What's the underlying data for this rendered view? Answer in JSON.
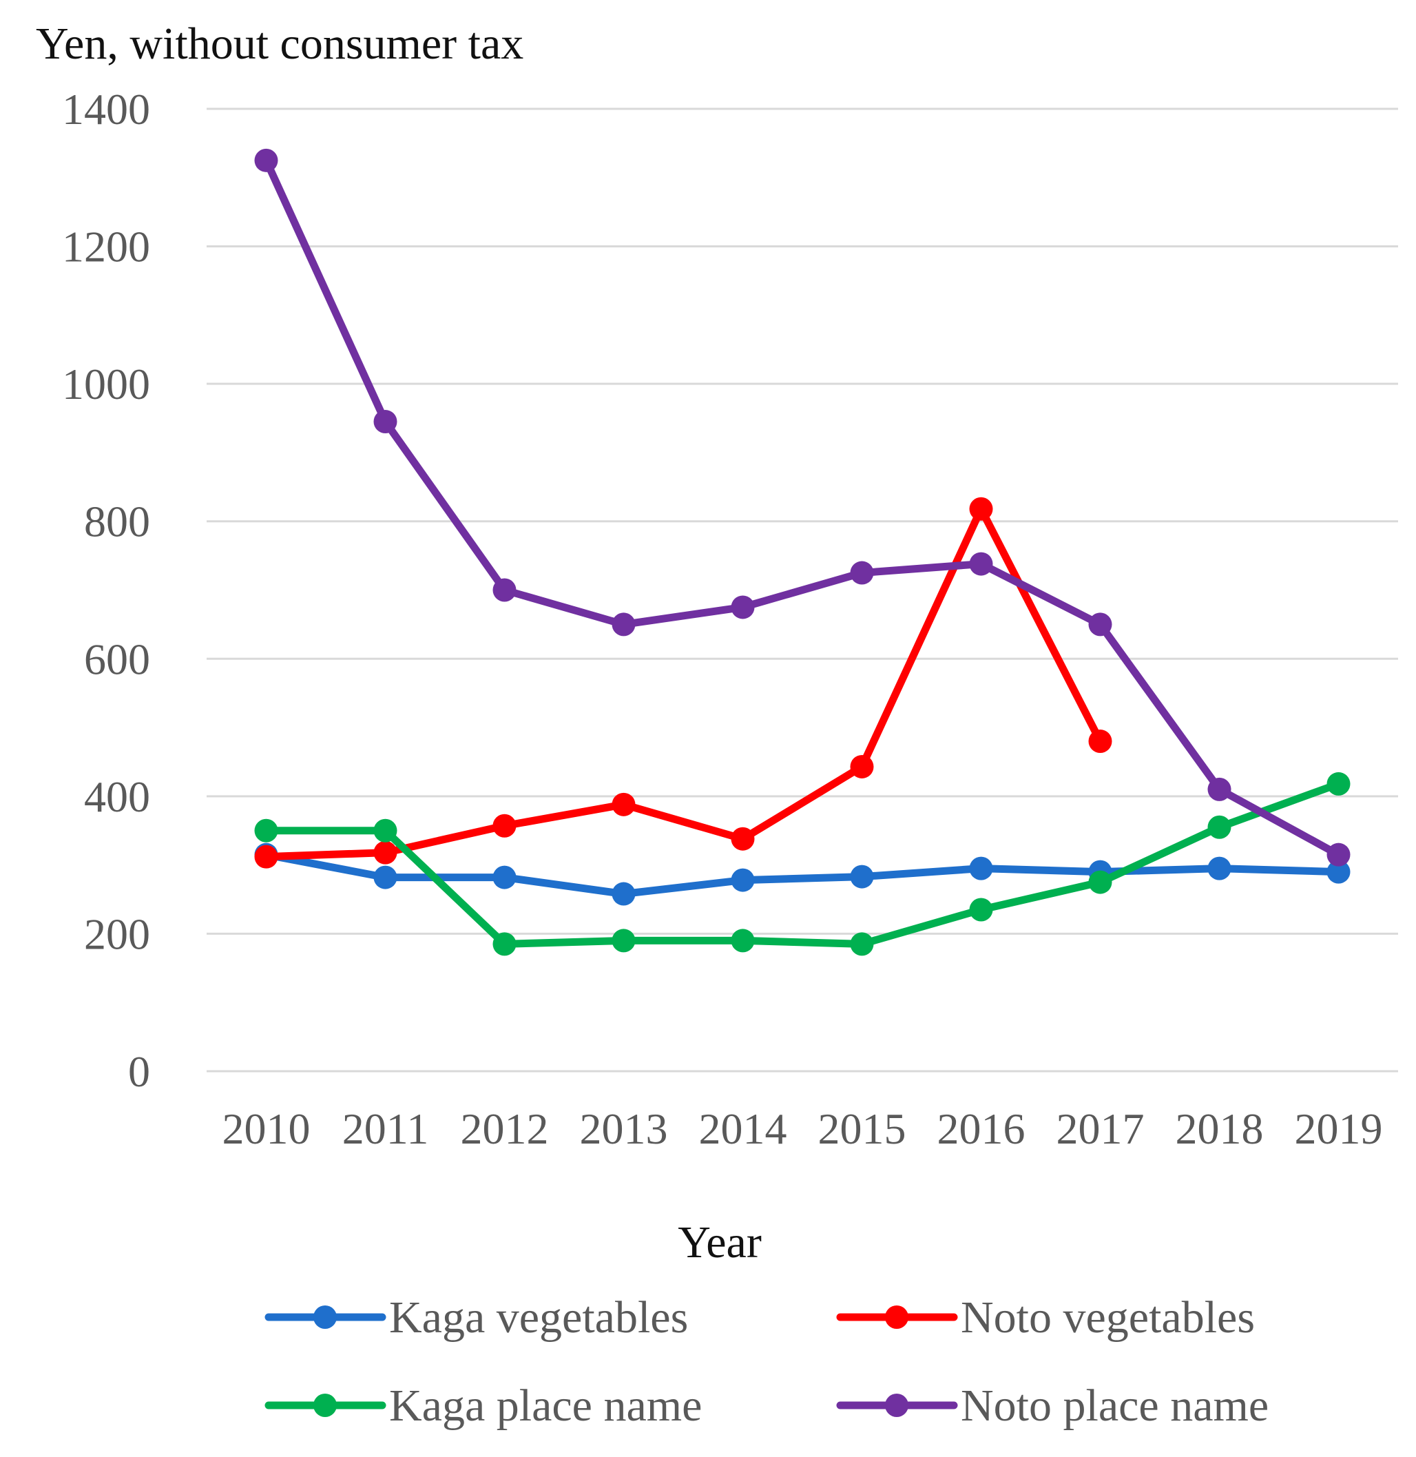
{
  "chart_data": {
    "type": "line",
    "title": "",
    "ylabel": "Yen, without consumer tax",
    "xlabel": "Year",
    "ylim": [
      0,
      1400
    ],
    "yticks": [
      0,
      200,
      400,
      600,
      800,
      1000,
      1200,
      1400
    ],
    "grid": true,
    "legend_position": "bottom",
    "categories": [
      "2010",
      "2011",
      "2012",
      "2013",
      "2014",
      "2015",
      "2016",
      "2017",
      "2018",
      "2019"
    ],
    "series": [
      {
        "name": "Kaga vegetables",
        "color": "#1f6fcc",
        "values": [
          315,
          282,
          282,
          258,
          278,
          283,
          295,
          290,
          295,
          290
        ]
      },
      {
        "name": "Noto vegetables",
        "color": "#ff0000",
        "values": [
          312,
          318,
          357,
          388,
          338,
          443,
          818,
          480,
          null,
          null
        ]
      },
      {
        "name": "Kaga place name",
        "color": "#00b050",
        "values": [
          350,
          350,
          185,
          190,
          190,
          185,
          235,
          275,
          355,
          418
        ]
      },
      {
        "name": "Noto place name",
        "color": "#7030a0",
        "values": [
          1325,
          945,
          700,
          650,
          675,
          725,
          738,
          650,
          410,
          315
        ]
      }
    ]
  }
}
